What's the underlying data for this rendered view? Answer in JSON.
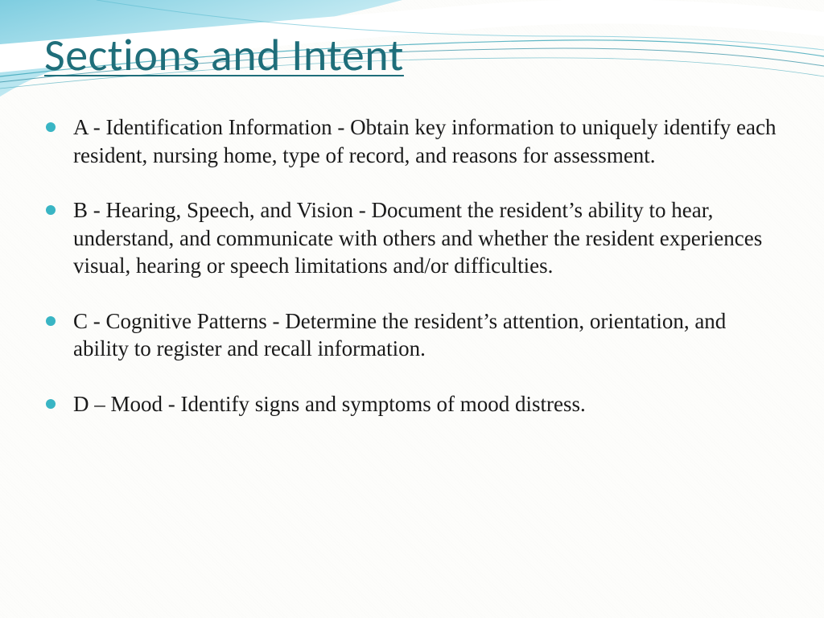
{
  "colors": {
    "title": "#1f6e7a",
    "bullet": "#39b5c4",
    "body_text": "#1a1a1a",
    "wave_light": "#a8dce8",
    "wave_mid": "#58bcd4",
    "wave_line": "#2a8aa0",
    "background": "#fdfdfb"
  },
  "typography": {
    "title_fontsize": 56,
    "body_fontsize": 27,
    "title_family": "Calibri, Segoe UI, Arial, sans-serif",
    "body_family": "Georgia, Times New Roman, serif"
  },
  "title": "Sections and Intent",
  "bullets": [
    "A - Identification Information - Obtain key information to uniquely identify each resident, nursing home, type of record, and reasons for assessment.",
    "B - Hearing, Speech, and Vision - Document the resident’s ability to hear, understand, and communicate with others and whether the resident experiences visual, hearing or speech limitations and/or difficulties.",
    "C - Cognitive Patterns - Determine the resident’s attention, orientation, and ability to register and recall information.",
    "D – Mood - Identify signs and symptoms of mood distress."
  ]
}
